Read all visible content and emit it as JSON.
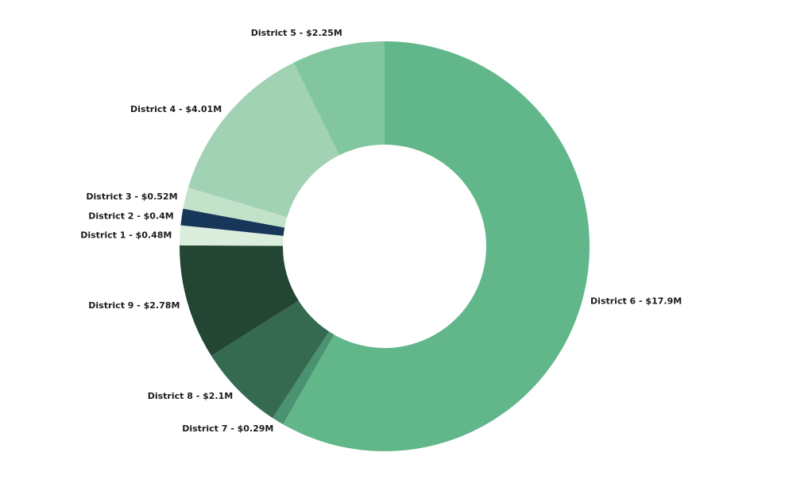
{
  "chart_data": {
    "type": "pie",
    "donut": true,
    "title": "",
    "start": "top",
    "direction": "clockwise",
    "slices": [
      {
        "label": "District 6 - $17.9M",
        "name": "District 6",
        "value": 17.9,
        "color": "#62b78a"
      },
      {
        "label": "District 7 - $0.29M",
        "name": "District 7",
        "value": 0.29,
        "color": "#4a9270"
      },
      {
        "label": "District 8 - $2.1M",
        "name": "District 8",
        "value": 2.1,
        "color": "#356a51"
      },
      {
        "label": "District 9 - $2.78M",
        "name": "District 9",
        "value": 2.78,
        "color": "#234533"
      },
      {
        "label": "District 1 - $0.48M",
        "name": "District 1",
        "value": 0.48,
        "color": "#dbeddc"
      },
      {
        "label": "District 2 - $0.4M",
        "name": "District 2",
        "value": 0.4,
        "color": "#17375a"
      },
      {
        "label": "District 3 - $0.52M",
        "name": "District 3",
        "value": 0.52,
        "color": "#c2e2c9"
      },
      {
        "label": "District 4 - $4.01M",
        "name": "District 4",
        "value": 4.01,
        "color": "#a0d2b3"
      },
      {
        "label": "District 5 - $2.25M",
        "name": "District 5",
        "value": 2.25,
        "color": "#82c6a0"
      }
    ]
  }
}
